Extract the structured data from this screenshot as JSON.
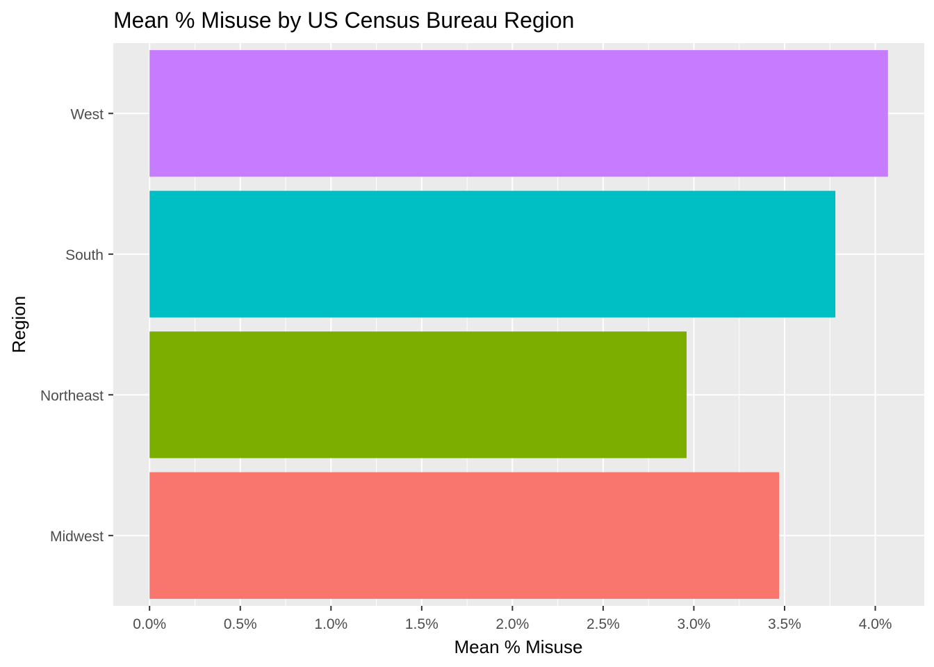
{
  "chart_data": {
    "type": "bar",
    "orientation": "horizontal",
    "title": "Mean % Misuse by US Census Bureau Region",
    "xlabel": "Mean % Misuse",
    "ylabel": "Region",
    "categories": [
      "Midwest",
      "Northeast",
      "South",
      "West"
    ],
    "values": [
      3.47,
      2.96,
      3.78,
      4.07
    ],
    "colors": [
      "#F8766D",
      "#7CAE00",
      "#00BFC4",
      "#C77CFF"
    ],
    "xlim": [
      -0.2,
      4.27
    ],
    "xticks": [
      0,
      0.5,
      1.0,
      1.5,
      2.0,
      2.5,
      3.0,
      3.5,
      4.0
    ],
    "xtick_labels": [
      "0.0%",
      "0.5%",
      "1.0%",
      "1.5%",
      "2.0%",
      "2.5%",
      "3.0%",
      "3.5%",
      "4.0%"
    ],
    "grid": true,
    "panel_background": "#EBEBEB",
    "gridline_color": "#FFFFFF",
    "legend": "none"
  }
}
